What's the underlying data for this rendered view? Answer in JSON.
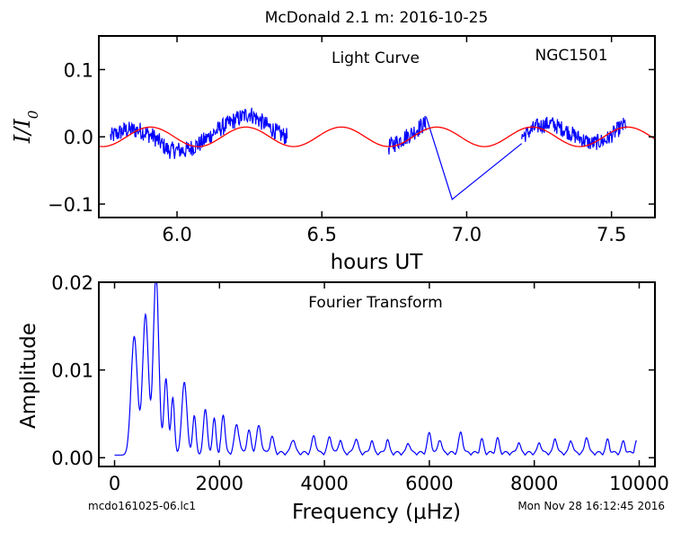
{
  "suptitle": "McDonald 2.1 m:  2016-10-25",
  "footer": {
    "left": "mcdo161025-06.lc1",
    "right": "Mon Nov 28 16:12:45 2016"
  },
  "chart_data": [
    {
      "type": "line",
      "title": "Light Curve",
      "annotation": "NGC1501",
      "xlabel": "hours UT",
      "ylabel": "I/I0",
      "xlim": [
        5.73,
        7.65
      ],
      "ylim": [
        -0.12,
        0.15
      ],
      "xticks": [
        6.0,
        6.5,
        7.0,
        7.5
      ],
      "xtick_labels": [
        "6.0",
        "6.5",
        "7.0",
        "7.5"
      ],
      "yticks": [
        -0.1,
        0.0,
        0.1
      ],
      "ytick_labels": [
        "−0.1",
        "0.0",
        "0.1"
      ],
      "grid": false,
      "series": [
        {
          "color": "#0000ff",
          "segments": [
            {
              "x_start": 5.77,
              "x_end": 6.38,
              "points": 340,
              "envelope": [
                [
                  5.77,
                  0.0
                ],
                [
                  5.82,
                  0.01
                ],
                [
                  5.87,
                  0.01
                ],
                [
                  5.92,
                  0.0
                ],
                [
                  5.97,
                  -0.02
                ],
                [
                  6.03,
                  -0.02
                ],
                [
                  6.08,
                  -0.01
                ],
                [
                  6.14,
                  0.01
                ],
                [
                  6.2,
                  0.025
                ],
                [
                  6.25,
                  0.035
                ],
                [
                  6.3,
                  0.02
                ],
                [
                  6.35,
                  0.005
                ],
                [
                  6.38,
                  0.0
                ]
              ],
              "noise": 0.013
            },
            {
              "x_start": 6.73,
              "x_end": 6.86,
              "points": 70,
              "envelope": [
                [
                  6.73,
                  -0.015
                ],
                [
                  6.77,
                  -0.005
                ],
                [
                  6.81,
                  0.005
                ],
                [
                  6.84,
                  0.015
                ],
                [
                  6.86,
                  0.02
                ]
              ],
              "noise": 0.013
            },
            {
              "x_start": 7.19,
              "x_end": 7.55,
              "points": 200,
              "envelope": [
                [
                  7.19,
                  0.0
                ],
                [
                  7.24,
                  0.015
                ],
                [
                  7.29,
                  0.02
                ],
                [
                  7.34,
                  0.01
                ],
                [
                  7.38,
                  0.0
                ],
                [
                  7.43,
                  -0.01
                ],
                [
                  7.48,
                  -0.005
                ],
                [
                  7.52,
                  0.01
                ],
                [
                  7.55,
                  0.02
                ]
              ],
              "noise": 0.012
            }
          ],
          "gap_line": [
            [
              6.86,
              0.03
            ],
            [
              6.95,
              -0.093
            ],
            [
              7.19,
              -0.01
            ]
          ]
        },
        {
          "color": "#ff0000",
          "model": "sine",
          "amplitude": 0.0145,
          "period_hours": 0.3295,
          "phase_ref_x": 6.567,
          "x_range": [
            5.73,
            7.65
          ]
        }
      ]
    },
    {
      "type": "line",
      "title": "Fourier Transform",
      "xlabel": "Frequency (μHz)",
      "ylabel": "Amplitude",
      "xlim": [
        -300,
        10300
      ],
      "ylim": [
        -0.001,
        0.02
      ],
      "xticks": [
        0,
        2000,
        4000,
        6000,
        8000,
        10000
      ],
      "xtick_labels": [
        "0",
        "2000",
        "4000",
        "6000",
        "8000",
        "10000"
      ],
      "yticks": [
        0.0,
        0.01,
        0.02
      ],
      "ytick_labels": [
        "0.00",
        "0.01",
        "0.02"
      ],
      "grid": false,
      "series": [
        {
          "color": "#0000ff",
          "peaks": [
            {
              "f": 375,
              "a": 0.0135,
              "w": 110
            },
            {
              "f": 590,
              "a": 0.016,
              "w": 100
            },
            {
              "f": 790,
              "a": 0.0205,
              "w": 95
            },
            {
              "f": 980,
              "a": 0.0087,
              "w": 70
            },
            {
              "f": 1110,
              "a": 0.0065,
              "w": 60
            },
            {
              "f": 1330,
              "a": 0.0083,
              "w": 90
            },
            {
              "f": 1520,
              "a": 0.0045,
              "w": 60
            },
            {
              "f": 1730,
              "a": 0.0052,
              "w": 70
            },
            {
              "f": 1900,
              "a": 0.0042,
              "w": 60
            },
            {
              "f": 2070,
              "a": 0.0045,
              "w": 60
            },
            {
              "f": 2330,
              "a": 0.0032,
              "w": 80
            },
            {
              "f": 2560,
              "a": 0.0025,
              "w": 70
            },
            {
              "f": 2750,
              "a": 0.003,
              "w": 80
            },
            {
              "f": 3000,
              "a": 0.0018,
              "w": 70
            },
            {
              "f": 3400,
              "a": 0.0016,
              "w": 70
            },
            {
              "f": 3800,
              "a": 0.0019,
              "w": 70
            },
            {
              "f": 4100,
              "a": 0.0018,
              "w": 70
            },
            {
              "f": 4300,
              "a": 0.0015,
              "w": 60
            },
            {
              "f": 4600,
              "a": 0.0016,
              "w": 70
            },
            {
              "f": 4900,
              "a": 0.0014,
              "w": 60
            },
            {
              "f": 5200,
              "a": 0.0015,
              "w": 60
            },
            {
              "f": 5600,
              "a": 0.0012,
              "w": 60
            },
            {
              "f": 6000,
              "a": 0.0022,
              "w": 70
            },
            {
              "f": 6200,
              "a": 0.0016,
              "w": 60
            },
            {
              "f": 6600,
              "a": 0.0023,
              "w": 70
            },
            {
              "f": 7000,
              "a": 0.0015,
              "w": 60
            },
            {
              "f": 7300,
              "a": 0.0016,
              "w": 60
            },
            {
              "f": 7700,
              "a": 0.0012,
              "w": 60
            },
            {
              "f": 8100,
              "a": 0.0012,
              "w": 60
            },
            {
              "f": 8400,
              "a": 0.0017,
              "w": 60
            },
            {
              "f": 8700,
              "a": 0.0015,
              "w": 60
            },
            {
              "f": 9000,
              "a": 0.0019,
              "w": 60
            },
            {
              "f": 9400,
              "a": 0.0015,
              "w": 60
            },
            {
              "f": 9700,
              "a": 0.0013,
              "w": 60
            },
            {
              "f": 9950,
              "a": 0.0013,
              "w": 60
            }
          ],
          "x_range": [
            0,
            9950
          ]
        }
      ]
    }
  ]
}
